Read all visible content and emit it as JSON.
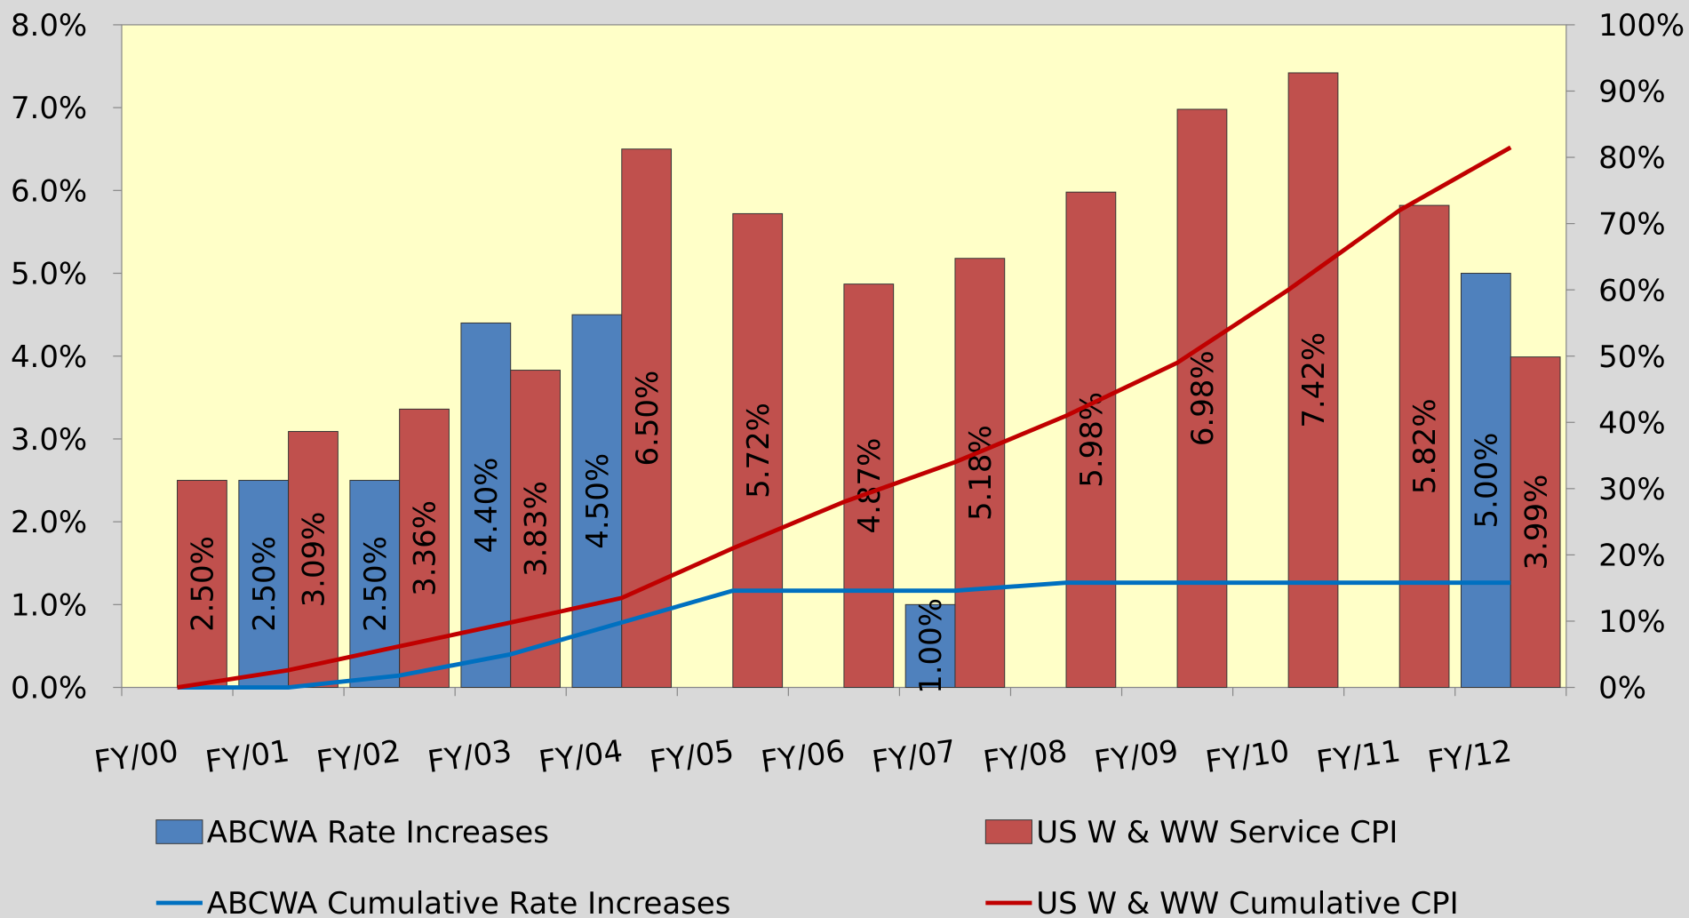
{
  "chart_data": {
    "type": "bar",
    "categories": [
      "FY/00",
      "FY/01",
      "FY/02",
      "FY/03",
      "FY/04",
      "FY/05",
      "FY/06",
      "FY/07",
      "FY/08",
      "FY/09",
      "FY/10",
      "FY/11",
      "FY/12"
    ],
    "series": [
      {
        "name": "ABCWA Rate Increases",
        "type": "bar",
        "color": "#4f81bd",
        "values": [
          null,
          2.5,
          2.5,
          4.4,
          4.5,
          null,
          null,
          1.0,
          null,
          null,
          null,
          null,
          5.0
        ],
        "value_labels": [
          null,
          "2.50%",
          "2.50%",
          "4.40%",
          "4.50%",
          null,
          null,
          "1.00%",
          null,
          null,
          null,
          null,
          "5.00%"
        ]
      },
      {
        "name": "US W & WW Service CPI",
        "type": "bar",
        "color": "#c0504d",
        "values": [
          2.5,
          3.09,
          3.36,
          3.83,
          6.5,
          5.72,
          4.87,
          5.18,
          5.98,
          6.98,
          7.42,
          5.82,
          3.99
        ],
        "value_labels": [
          "2.50%",
          "3.09%",
          "3.36%",
          "3.83%",
          "6.50%",
          "5.72%",
          "4.87%",
          "5.18%",
          "5.98%",
          "6.98%",
          "7.42%",
          "5.82%",
          "3.99%"
        ]
      },
      {
        "name": "ABCWA Cumulative Rate Increases",
        "type": "line",
        "axis": "y2",
        "color": "#0070c0",
        "values": [
          0,
          0,
          1.8,
          5,
          9.8,
          14.6,
          14.6,
          14.6,
          15.8,
          15.8,
          15.8,
          15.8,
          15.8
        ]
      },
      {
        "name": "US W & WW Cumulative CPI",
        "type": "line",
        "axis": "y2",
        "color": "#c00000",
        "values": [
          0,
          2.6,
          6.2,
          9.8,
          13.5,
          21,
          28,
          34,
          41,
          49,
          60,
          72,
          81.5
        ]
      }
    ],
    "ylim": [
      0,
      8
    ],
    "yticks": [
      {
        "value": 0,
        "label": "0.0%"
      },
      {
        "value": 1,
        "label": "1.0%"
      },
      {
        "value": 2,
        "label": "2.0%"
      },
      {
        "value": 3,
        "label": "3.0%"
      },
      {
        "value": 4,
        "label": "4.0%"
      },
      {
        "value": 5,
        "label": "5.0%"
      },
      {
        "value": 6,
        "label": "6.0%"
      },
      {
        "value": 7,
        "label": "7.0%"
      },
      {
        "value": 8,
        "label": "8.0%"
      }
    ],
    "y2lim": [
      0,
      100
    ],
    "y2ticks": [
      {
        "value": 0,
        "label": "0%"
      },
      {
        "value": 10,
        "label": "10%"
      },
      {
        "value": 20,
        "label": "20%"
      },
      {
        "value": 30,
        "label": "30%"
      },
      {
        "value": 40,
        "label": "40%"
      },
      {
        "value": 50,
        "label": "50%"
      },
      {
        "value": 60,
        "label": "60%"
      },
      {
        "value": 70,
        "label": "70%"
      },
      {
        "value": 80,
        "label": "80%"
      },
      {
        "value": 90,
        "label": "90%"
      },
      {
        "value": 100,
        "label": "100%"
      }
    ],
    "plot_background": "#ffffc8",
    "grid": false,
    "legend": "bottom"
  }
}
